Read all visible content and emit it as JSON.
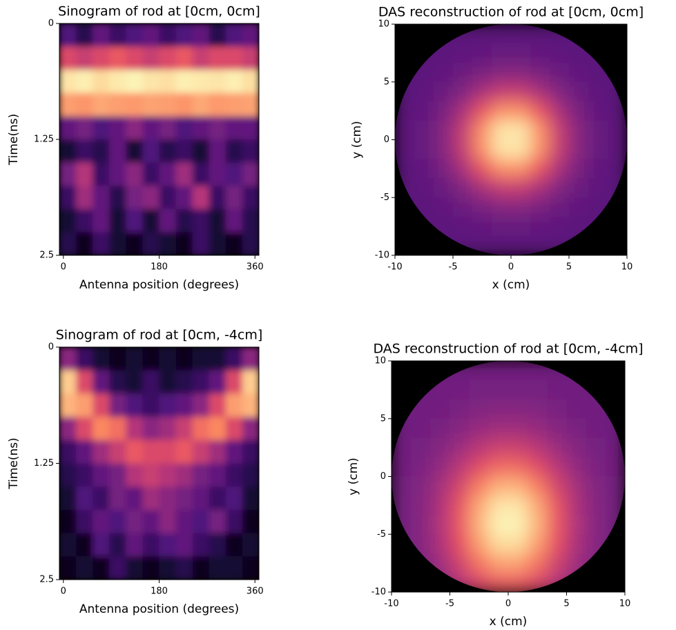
{
  "chart_data": [
    {
      "type": "heatmap",
      "title": "Sinogram of rod at [0cm, 0cm]",
      "x_label": "Antenna position (degrees)",
      "y_label": "Time(ns)",
      "colormap": "magma",
      "xlim": [
        -7.5,
        367.5
      ],
      "xticks": [
        0,
        180,
        360
      ],
      "ylim": [
        2.5,
        0
      ],
      "yticks": [
        0,
        1.25,
        2.5
      ],
      "values": [
        [
          0.25,
          0.15,
          0.3,
          0.2,
          0.25,
          0.3,
          0.2,
          0.25,
          0.3,
          0.15,
          0.25,
          0.3
        ],
        [
          0.6,
          0.55,
          0.6,
          0.65,
          0.6,
          0.55,
          0.6,
          0.65,
          0.55,
          0.6,
          0.6,
          0.55
        ],
        [
          0.95,
          0.97,
          0.93,
          0.96,
          0.98,
          0.95,
          0.94,
          0.97,
          0.96,
          0.95,
          0.97,
          0.94
        ],
        [
          0.8,
          0.78,
          0.82,
          0.8,
          0.79,
          0.81,
          0.8,
          0.78,
          0.82,
          0.79,
          0.8,
          0.81
        ],
        [
          0.3,
          0.35,
          0.25,
          0.3,
          0.4,
          0.3,
          0.35,
          0.25,
          0.3,
          0.35,
          0.3,
          0.3
        ],
        [
          0.1,
          0.2,
          0.15,
          0.3,
          0.1,
          0.25,
          0.15,
          0.2,
          0.1,
          0.3,
          0.15,
          0.2
        ],
        [
          0.35,
          0.5,
          0.2,
          0.3,
          0.4,
          0.2,
          0.3,
          0.45,
          0.2,
          0.3,
          0.25,
          0.35
        ],
        [
          0.2,
          0.45,
          0.3,
          0.15,
          0.35,
          0.4,
          0.2,
          0.3,
          0.5,
          0.2,
          0.35,
          0.2
        ],
        [
          0.1,
          0.2,
          0.3,
          0.1,
          0.25,
          0.1,
          0.3,
          0.15,
          0.2,
          0.1,
          0.3,
          0.15
        ],
        [
          0.15,
          0.05,
          0.2,
          0.1,
          0.05,
          0.15,
          0.1,
          0.05,
          0.2,
          0.1,
          0.05,
          0.15
        ]
      ]
    },
    {
      "type": "heatmap",
      "title": "DAS reconstruction of rod at [0cm, 0cm]",
      "x_label": "x (cm)",
      "y_label": "y (cm)",
      "colormap": "magma",
      "circular": true,
      "xlim": [
        -10,
        10
      ],
      "xticks": [
        -10,
        -5,
        0,
        5,
        10
      ],
      "ylim": [
        -10,
        10
      ],
      "yticks": [
        -10,
        -5,
        0,
        5,
        10
      ],
      "values": [
        [
          0.28,
          0.28,
          0.28,
          0.28,
          0.28,
          0.28,
          0.28,
          0.28,
          0.28,
          0.28,
          0.28,
          0.28
        ],
        [
          0.28,
          0.28,
          0.28,
          0.29,
          0.3,
          0.31,
          0.31,
          0.3,
          0.29,
          0.28,
          0.28,
          0.28
        ],
        [
          0.28,
          0.28,
          0.3,
          0.32,
          0.36,
          0.39,
          0.39,
          0.36,
          0.32,
          0.3,
          0.28,
          0.28
        ],
        [
          0.28,
          0.29,
          0.32,
          0.38,
          0.47,
          0.54,
          0.54,
          0.47,
          0.38,
          0.32,
          0.29,
          0.28
        ],
        [
          0.28,
          0.3,
          0.36,
          0.47,
          0.64,
          0.77,
          0.77,
          0.64,
          0.47,
          0.36,
          0.3,
          0.28
        ],
        [
          0.29,
          0.31,
          0.39,
          0.54,
          0.77,
          0.95,
          0.95,
          0.77,
          0.54,
          0.39,
          0.31,
          0.29
        ],
        [
          0.29,
          0.31,
          0.39,
          0.54,
          0.77,
          0.95,
          0.95,
          0.77,
          0.54,
          0.39,
          0.31,
          0.29
        ],
        [
          0.28,
          0.3,
          0.36,
          0.47,
          0.64,
          0.77,
          0.77,
          0.64,
          0.47,
          0.36,
          0.3,
          0.28
        ],
        [
          0.28,
          0.29,
          0.32,
          0.38,
          0.47,
          0.54,
          0.54,
          0.47,
          0.38,
          0.32,
          0.29,
          0.28
        ],
        [
          0.28,
          0.28,
          0.3,
          0.32,
          0.36,
          0.39,
          0.39,
          0.36,
          0.32,
          0.3,
          0.28,
          0.28
        ],
        [
          0.28,
          0.28,
          0.28,
          0.29,
          0.3,
          0.31,
          0.31,
          0.3,
          0.29,
          0.28,
          0.28,
          0.28
        ],
        [
          0.28,
          0.28,
          0.28,
          0.28,
          0.28,
          0.28,
          0.28,
          0.28,
          0.28,
          0.28,
          0.28,
          0.28
        ]
      ]
    },
    {
      "type": "heatmap",
      "title": "Sinogram of rod at [0cm, -4cm]",
      "x_label": "Antenna position (degrees)",
      "y_label": "Time(ns)",
      "colormap": "magma",
      "xlim": [
        -7.5,
        367.5
      ],
      "xticks": [
        0,
        180,
        360
      ],
      "ylim": [
        2.5,
        0
      ],
      "yticks": [
        0,
        1.25,
        2.5
      ],
      "values": [
        [
          0.4,
          0.2,
          0.1,
          0.05,
          0.1,
          0.05,
          0.1,
          0.05,
          0.1,
          0.1,
          0.2,
          0.4
        ],
        [
          0.9,
          0.6,
          0.3,
          0.15,
          0.1,
          0.2,
          0.1,
          0.15,
          0.2,
          0.3,
          0.6,
          0.9
        ],
        [
          0.85,
          0.8,
          0.6,
          0.35,
          0.25,
          0.2,
          0.25,
          0.3,
          0.4,
          0.6,
          0.8,
          0.85
        ],
        [
          0.4,
          0.6,
          0.75,
          0.7,
          0.5,
          0.4,
          0.45,
          0.55,
          0.7,
          0.75,
          0.6,
          0.4
        ],
        [
          0.2,
          0.3,
          0.45,
          0.55,
          0.65,
          0.6,
          0.6,
          0.65,
          0.55,
          0.45,
          0.3,
          0.2
        ],
        [
          0.15,
          0.2,
          0.3,
          0.35,
          0.5,
          0.55,
          0.5,
          0.45,
          0.35,
          0.3,
          0.2,
          0.15
        ],
        [
          0.1,
          0.25,
          0.2,
          0.35,
          0.3,
          0.45,
          0.4,
          0.35,
          0.3,
          0.2,
          0.25,
          0.1
        ],
        [
          0.05,
          0.2,
          0.3,
          0.25,
          0.35,
          0.3,
          0.4,
          0.3,
          0.25,
          0.35,
          0.2,
          0.05
        ],
        [
          0.1,
          0.05,
          0.25,
          0.15,
          0.3,
          0.2,
          0.25,
          0.3,
          0.2,
          0.15,
          0.05,
          0.1
        ],
        [
          0.05,
          0.1,
          0.05,
          0.2,
          0.1,
          0.05,
          0.1,
          0.15,
          0.05,
          0.1,
          0.1,
          0.05
        ]
      ]
    },
    {
      "type": "heatmap",
      "title": "DAS reconstruction of rod at [0cm, -4cm]",
      "x_label": "x (cm)",
      "y_label": "y (cm)",
      "colormap": "magma",
      "circular": true,
      "xlim": [
        -10,
        10
      ],
      "xticks": [
        -10,
        -5,
        0,
        5,
        10
      ],
      "ylim": [
        -10,
        10
      ],
      "yticks": [
        -10,
        -5,
        0,
        5,
        10
      ],
      "values": [
        [
          0.33,
          0.33,
          0.33,
          0.33,
          0.34,
          0.34,
          0.34,
          0.34,
          0.33,
          0.33,
          0.33,
          0.33
        ],
        [
          0.33,
          0.33,
          0.34,
          0.34,
          0.35,
          0.35,
          0.35,
          0.35,
          0.34,
          0.34,
          0.33,
          0.33
        ],
        [
          0.33,
          0.34,
          0.34,
          0.36,
          0.38,
          0.39,
          0.39,
          0.38,
          0.36,
          0.34,
          0.34,
          0.33
        ],
        [
          0.33,
          0.34,
          0.36,
          0.39,
          0.43,
          0.45,
          0.45,
          0.43,
          0.39,
          0.36,
          0.34,
          0.33
        ],
        [
          0.34,
          0.35,
          0.39,
          0.44,
          0.51,
          0.56,
          0.56,
          0.51,
          0.44,
          0.39,
          0.35,
          0.34
        ],
        [
          0.34,
          0.37,
          0.42,
          0.51,
          0.62,
          0.69,
          0.69,
          0.62,
          0.51,
          0.42,
          0.37,
          0.34
        ],
        [
          0.35,
          0.38,
          0.46,
          0.58,
          0.73,
          0.84,
          0.84,
          0.73,
          0.58,
          0.46,
          0.38,
          0.35
        ],
        [
          0.35,
          0.39,
          0.48,
          0.64,
          0.82,
          0.95,
          0.95,
          0.82,
          0.64,
          0.48,
          0.39,
          0.35
        ],
        [
          0.35,
          0.39,
          0.49,
          0.65,
          0.85,
          0.98,
          0.98,
          0.85,
          0.65,
          0.49,
          0.39,
          0.35
        ],
        [
          0.35,
          0.39,
          0.48,
          0.63,
          0.8,
          0.93,
          0.93,
          0.8,
          0.63,
          0.48,
          0.39,
          0.35
        ],
        [
          0.35,
          0.38,
          0.45,
          0.57,
          0.71,
          0.81,
          0.81,
          0.71,
          0.57,
          0.45,
          0.38,
          0.35
        ],
        [
          0.34,
          0.36,
          0.41,
          0.5,
          0.6,
          0.66,
          0.66,
          0.6,
          0.5,
          0.41,
          0.36,
          0.34
        ]
      ]
    }
  ]
}
